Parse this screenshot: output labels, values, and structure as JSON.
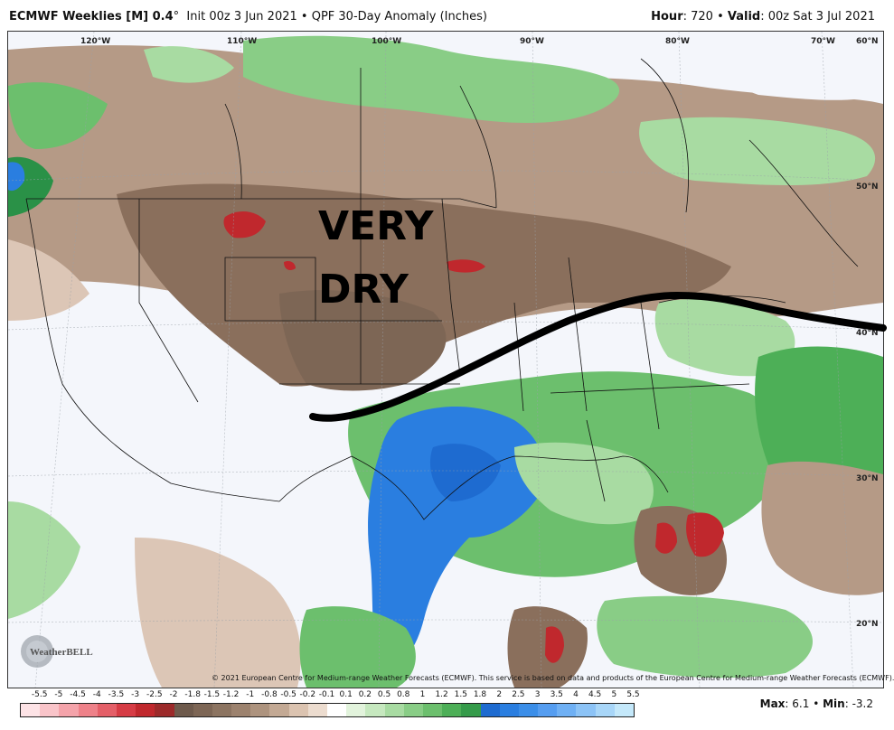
{
  "header": {
    "model": "ECMWF Weeklies [M] 0.4",
    "degree": "°",
    "init": "Init 00z 3 Jun 2021",
    "sep": "•",
    "product": "QPF 30-Day Anomaly (Inches)",
    "hour_label": "Hour",
    "hour_value": ": 720",
    "valid_label": "Valid",
    "valid_value": ": 00z Sat 3 Jul 2021"
  },
  "map": {
    "longitude_labels": [
      "120°W",
      "110°W",
      "100°W",
      "90°W",
      "80°W",
      "70°W",
      "60°N"
    ],
    "latitude_labels": [
      "50°N",
      "40°N",
      "30°N",
      "20°N"
    ],
    "annotation_line1": "VERY",
    "annotation_line2": "DRY",
    "copyright": "© 2021 European Centre for Medium-range Weather Forecasts (ECMWF). This service is based on data and products of the European Centre for Medium-range Weather Forecasts (ECMWF).",
    "logo_text": "WeatherBELL",
    "colors": {
      "very_dry": "#8a6f5c",
      "dry": "#b59a86",
      "light_dry": "#dcc6b6",
      "wet": "#7cc37f",
      "very_wet": "#2a9147",
      "heavy_wet": "#2f6fd6",
      "extreme_dry": "#c0282d",
      "front_line": "#000000"
    }
  },
  "colorbar": {
    "labels": [
      "-5.5",
      "-5",
      "-4.5",
      "-4",
      "-3.5",
      "-3",
      "-2.5",
      "-2",
      "-1.8",
      "-1.5",
      "-1.2",
      "-1",
      "-0.8",
      "-0.5",
      "-0.2",
      "-0.1",
      "0.1",
      "0.2",
      "0.5",
      "0.8",
      "1",
      "1.2",
      "1.5",
      "1.8",
      "2",
      "2.5",
      "3",
      "3.5",
      "4",
      "4.5",
      "5",
      "5.5"
    ],
    "colors": [
      "#fde3e6",
      "#f9c4c9",
      "#f4a3aa",
      "#ee8189",
      "#e45f68",
      "#d63c45",
      "#c0282d",
      "#9c2a2a",
      "#6e5a4c",
      "#7d6655",
      "#8c7461",
      "#9c826e",
      "#ad937e",
      "#c3a994",
      "#dbc3b0",
      "#ecdccf",
      "#ffffff",
      "#e2f3dc",
      "#c6e8bf",
      "#a8dba2",
      "#89cd86",
      "#6cbf6d",
      "#4daf57",
      "#359b4a",
      "#1e6bd0",
      "#2a7ee0",
      "#3b8ee8",
      "#559df0",
      "#6fb0f4",
      "#8cc3f6",
      "#a8d6f8",
      "#c4e8fa"
    ]
  },
  "stats": {
    "max_label": "Max",
    "max_value": ": 6.1",
    "min_label": "Min",
    "min_value": ": -3.2"
  }
}
